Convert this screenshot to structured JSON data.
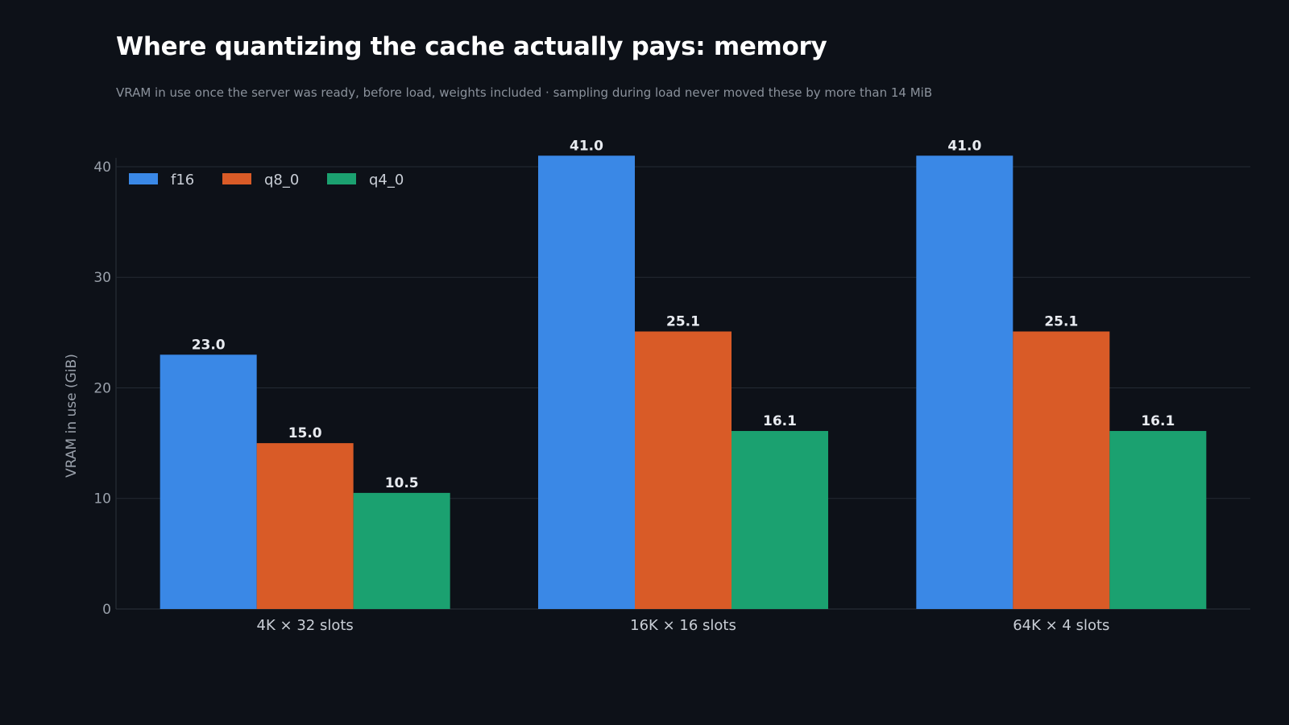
{
  "title": "Where quantizing the cache actually pays: memory",
  "subtitle": "VRAM in use once the server was ready, before load, weights included · sampling during load never moved these by more than 14 MiB",
  "chart_data": {
    "type": "bar",
    "categories": [
      "4K × 32 slots",
      "16K × 16 slots",
      "64K × 4 slots"
    ],
    "series": [
      {
        "name": "f16",
        "color": "#3a88e6",
        "values": [
          23.0,
          41.0,
          41.0
        ]
      },
      {
        "name": "q8_0",
        "color": "#d95b27",
        "values": [
          15.0,
          25.1,
          25.1
        ]
      },
      {
        "name": "q4_0",
        "color": "#1ba170",
        "values": [
          10.5,
          16.1,
          16.1
        ]
      }
    ],
    "ylabel": "VRAM in use (GiB)",
    "xlabel": "",
    "yticks": [
      0,
      10,
      20,
      30,
      40
    ],
    "ylim": [
      0,
      40.8
    ],
    "grid": true,
    "legend": "top-left",
    "value_format": "one-decimal"
  }
}
